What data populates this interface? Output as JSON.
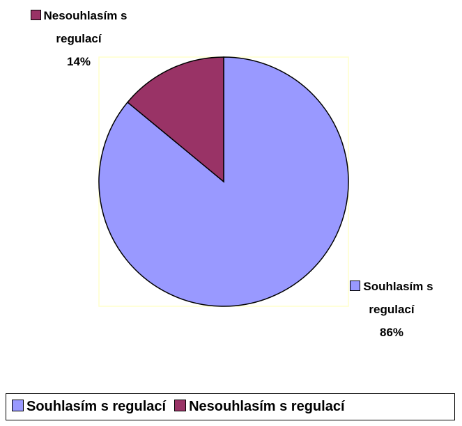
{
  "chart_data": {
    "type": "pie",
    "categories": [
      "Souhlasím s regulací",
      "Nesouhlasím s regulací"
    ],
    "values": [
      86,
      14
    ],
    "value_labels": [
      "86%",
      "14%"
    ],
    "colors": [
      "#9999ff",
      "#993366"
    ],
    "legend": "bottom"
  }
}
